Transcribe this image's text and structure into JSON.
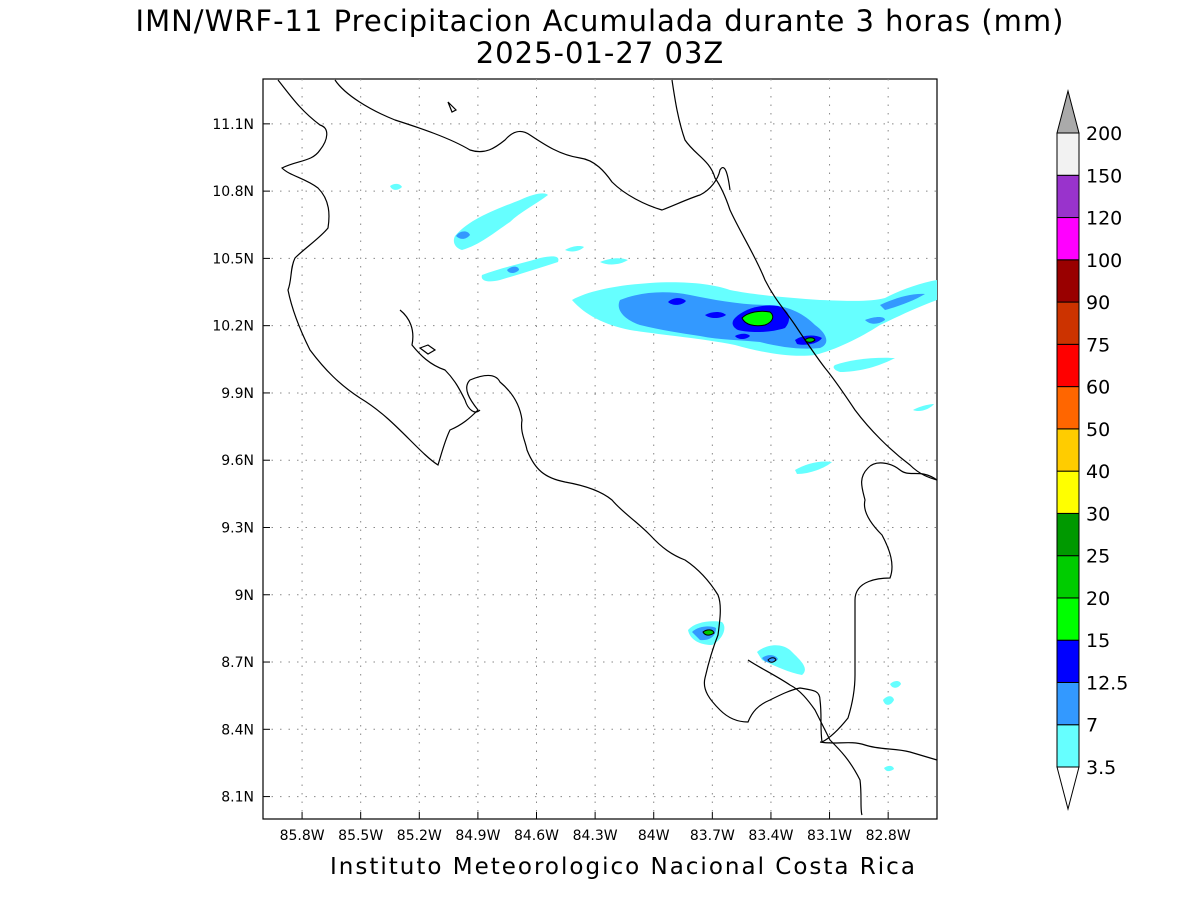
{
  "title_line1": "IMN/WRF-11 Precipitacion Acumulada durante 3 horas (mm)",
  "title_line2": "2025-01-27 03Z",
  "footer": "Instituto Meteorologico Nacional Costa Rica",
  "axes": {
    "lon_min": -86.0,
    "lon_max": -82.55,
    "lat_min": 8.0,
    "lat_max": 11.3,
    "lon_ticks": [
      -85.8,
      -85.5,
      -85.2,
      -84.9,
      -84.6,
      -84.3,
      -84.0,
      -83.7,
      -83.4,
      -83.1,
      -82.8
    ],
    "lon_labels": [
      "85.8W",
      "85.5W",
      "85.2W",
      "84.9W",
      "84.6W",
      "84.3W",
      "84W",
      "83.7W",
      "83.4W",
      "83.1W",
      "82.8W"
    ],
    "lat_ticks": [
      11.1,
      10.8,
      10.5,
      10.2,
      9.9,
      9.6,
      9.3,
      9.0,
      8.7,
      8.4,
      8.1
    ],
    "lat_labels": [
      "11.1N",
      "10.8N",
      "10.5N",
      "10.2N",
      "9.9N",
      "9.6N",
      "9.3N",
      "9N",
      "8.7N",
      "8.4N",
      "8.1N"
    ],
    "grid": true
  },
  "colorbar": {
    "levels": [
      "3.5",
      "7",
      "12.5",
      "15",
      "20",
      "25",
      "30",
      "40",
      "50",
      "60",
      "75",
      "90",
      "100",
      "120",
      "150",
      "200"
    ],
    "colors": [
      "#66ffff",
      "#3399ff",
      "#0000ff",
      "#00ff00",
      "#00cc00",
      "#009900",
      "#ffff00",
      "#ffcc00",
      "#ff6600",
      "#ff0000",
      "#cc3300",
      "#990000",
      "#ff00ff",
      "#9933cc",
      "#f2f2f2",
      "#aaaaaa"
    ]
  }
}
